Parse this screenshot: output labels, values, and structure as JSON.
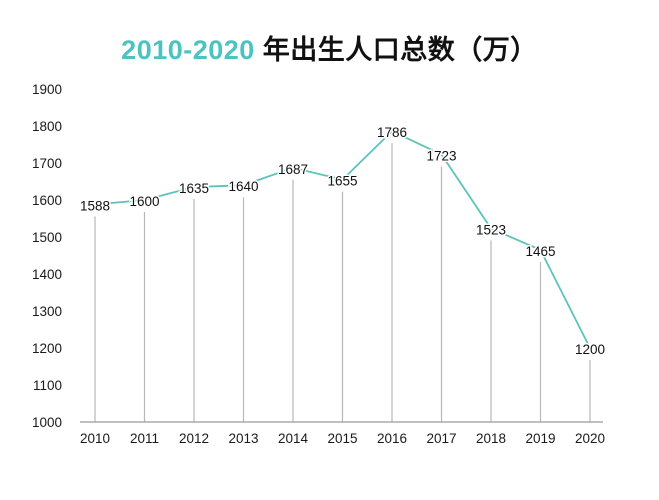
{
  "title": {
    "accent": "2010-2020",
    "rest": " 年出生人口总数（万）",
    "accent_color": "#4cc3c0"
  },
  "colors": {
    "line": "#5cc4bb",
    "stems": "#b8b8b8",
    "axis": "#9a9a9a",
    "text": "#111111"
  },
  "chart_data": {
    "type": "line",
    "title": "2010-2020 年出生人口总数（万）",
    "xlabel": "",
    "ylabel": "",
    "categories": [
      "2010",
      "2011",
      "2012",
      "2013",
      "2014",
      "2015",
      "2016",
      "2017",
      "2018",
      "2019",
      "2020"
    ],
    "values": [
      1588,
      1600,
      1635,
      1640,
      1687,
      1655,
      1786,
      1723,
      1523,
      1465,
      1200
    ],
    "data_labels": [
      "1588",
      "1600",
      "1635",
      "1640",
      "1687",
      "1655",
      "1786",
      "1723",
      "1523",
      "1465",
      "1200"
    ],
    "yticks": [
      1000,
      1100,
      1200,
      1300,
      1400,
      1500,
      1600,
      1700,
      1800,
      1900
    ],
    "ylim": [
      1000,
      1900
    ],
    "grid": false,
    "drop_lines": true,
    "legend": null
  }
}
